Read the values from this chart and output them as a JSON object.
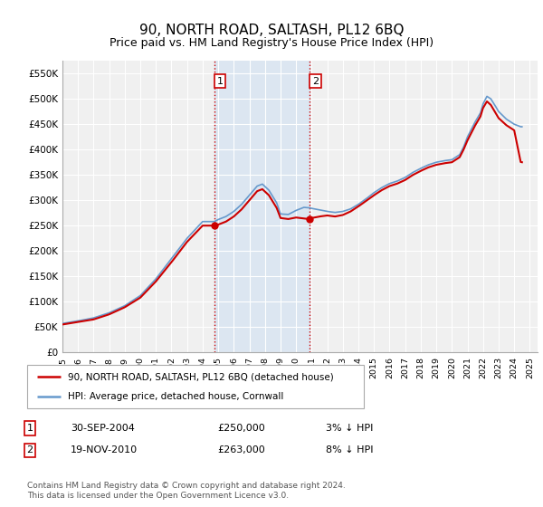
{
  "title": "90, NORTH ROAD, SALTASH, PL12 6BQ",
  "subtitle": "Price paid vs. HM Land Registry's House Price Index (HPI)",
  "title_fontsize": 11,
  "subtitle_fontsize": 9,
  "background_color": "#ffffff",
  "plot_bg_color": "#f0f0f0",
  "grid_color": "#ffffff",
  "ylim": [
    0,
    575000
  ],
  "yticks": [
    0,
    50000,
    100000,
    150000,
    200000,
    250000,
    300000,
    350000,
    400000,
    450000,
    500000,
    550000
  ],
  "ytick_labels": [
    "£0",
    "£50K",
    "£100K",
    "£150K",
    "£200K",
    "£250K",
    "£300K",
    "£350K",
    "£400K",
    "£450K",
    "£500K",
    "£550K"
  ],
  "hpi_color": "#6699cc",
  "price_color": "#cc0000",
  "vline_color": "#cc0000",
  "vline_style": ":",
  "highlight_bg": "#dce6f1",
  "purchase1_year": 2004.75,
  "purchase1_price": 250000,
  "purchase1_label": "1",
  "purchase1_date": "30-SEP-2004",
  "purchase1_pct": "3% ↓ HPI",
  "purchase2_year": 2010.88,
  "purchase2_price": 263000,
  "purchase2_label": "2",
  "purchase2_date": "19-NOV-2010",
  "purchase2_pct": "8% ↓ HPI",
  "legend_price_label": "90, NORTH ROAD, SALTASH, PL12 6BQ (detached house)",
  "legend_hpi_label": "HPI: Average price, detached house, Cornwall",
  "footer": "Contains HM Land Registry data © Crown copyright and database right 2024.\nThis data is licensed under the Open Government Licence v3.0."
}
